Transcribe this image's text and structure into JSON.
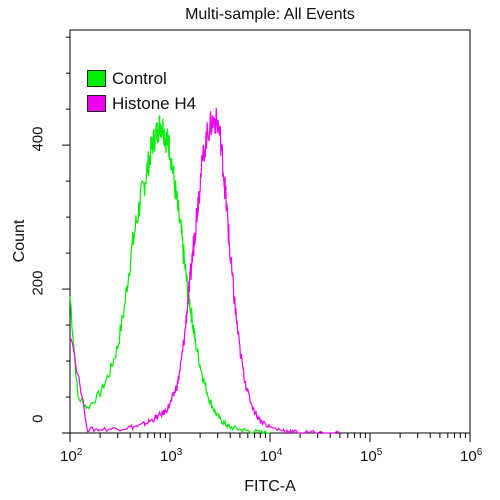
{
  "chart_data": {
    "type": "line",
    "title": "Multi-sample: All Events",
    "xlabel": "FITC-A",
    "ylabel": "Count",
    "x_scale": "log",
    "xlim": [
      100,
      1000000
    ],
    "ylim": [
      0,
      560
    ],
    "x_ticks": [
      {
        "base": "10",
        "exp": "2",
        "value": 100
      },
      {
        "base": "10",
        "exp": "3",
        "value": 1000
      },
      {
        "base": "10",
        "exp": "4",
        "value": 10000
      },
      {
        "base": "10",
        "exp": "5",
        "value": 100000
      },
      {
        "base": "10",
        "exp": "6",
        "value": 1000000
      }
    ],
    "y_ticks": [
      "0",
      "200",
      "400"
    ],
    "y_tick_values": [
      0,
      200,
      400
    ],
    "legend_position": "top-left",
    "series": [
      {
        "name": "Control",
        "color": "#00ee00",
        "x": [
          100,
          120,
          150,
          200,
          250,
          300,
          350,
          400,
          450,
          500,
          550,
          600,
          650,
          700,
          750,
          800,
          850,
          900,
          950,
          1000,
          1100,
          1200,
          1300,
          1400,
          1500,
          1600,
          1700,
          1800,
          2000,
          2200,
          2500,
          2800,
          3200,
          3600,
          4000,
          5000,
          6000,
          8000,
          10000
        ],
        "y": [
          190,
          50,
          35,
          55,
          85,
          120,
          175,
          240,
          285,
          320,
          345,
          370,
          395,
          410,
          420,
          430,
          425,
          410,
          405,
          395,
          350,
          310,
          275,
          235,
          200,
          175,
          150,
          125,
          95,
          70,
          45,
          30,
          18,
          12,
          8,
          5,
          3,
          1,
          0
        ]
      },
      {
        "name": "Histone H4",
        "color": "#ee00ee",
        "x": [
          100,
          150,
          200,
          300,
          400,
          500,
          600,
          700,
          800,
          900,
          1000,
          1100,
          1200,
          1300,
          1400,
          1500,
          1600,
          1700,
          1800,
          1900,
          2000,
          2200,
          2400,
          2600,
          2800,
          3000,
          3200,
          3400,
          3600,
          3800,
          4000,
          4300,
          4600,
          5000,
          5500,
          6000,
          7000,
          8000,
          10000,
          13000,
          16000,
          20000,
          30000,
          50000
        ],
        "y": [
          145,
          5,
          5,
          6,
          8,
          10,
          15,
          20,
          25,
          30,
          40,
          55,
          70,
          100,
          135,
          180,
          215,
          255,
          290,
          320,
          350,
          395,
          420,
          430,
          435,
          430,
          410,
          370,
          330,
          290,
          245,
          200,
          160,
          115,
          80,
          55,
          30,
          18,
          8,
          4,
          2,
          1,
          0,
          0
        ]
      }
    ]
  }
}
